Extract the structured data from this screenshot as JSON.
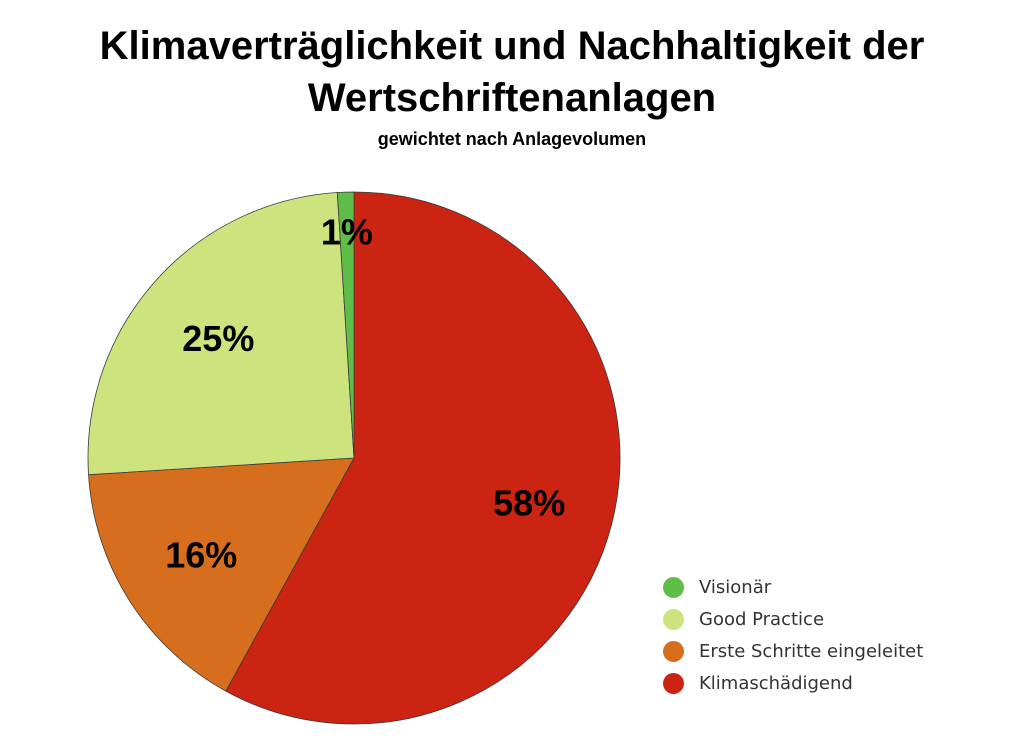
{
  "chart_data": {
    "type": "pie",
    "title_lines": [
      "Klimaverträglichkeit und Nachhaltigkeit der",
      "Wertschriftenanlagen"
    ],
    "subtitle": "gewichtet nach Anlagevolumen",
    "unit": "%",
    "slices": [
      {
        "label": "Klimaschädigend",
        "value": 58,
        "display": "58%",
        "color": "#cb2413"
      },
      {
        "label": "Erste Schritte eingeleitet",
        "value": 16,
        "display": "16%",
        "color": "#d66e1d"
      },
      {
        "label": "Good Practice",
        "value": 25,
        "display": "25%",
        "color": "#cde47e"
      },
      {
        "label": "Visionär",
        "value": 1,
        "display": "1%",
        "color": "#5fbe47"
      }
    ],
    "legend": {
      "position": "bottom-right",
      "items": [
        {
          "label": "Visionär",
          "color": "#5fbe47"
        },
        {
          "label": "Good Practice",
          "color": "#cde47e"
        },
        {
          "label": "Erste Schritte eingeleitet",
          "color": "#d66e1d"
        },
        {
          "label": "Klimaschädigend",
          "color": "#cb2413"
        }
      ]
    }
  }
}
